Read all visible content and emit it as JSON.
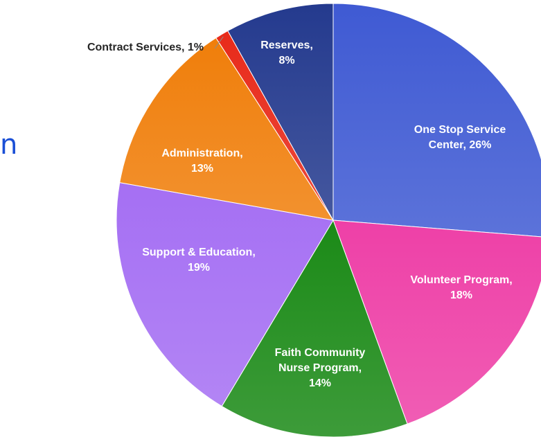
{
  "edge_fragment": "n",
  "chart_data": {
    "type": "pie",
    "title": "",
    "start_angle_deg": 0,
    "direction": "clockwise",
    "slices": [
      {
        "label_lines": [
          "One Stop Service",
          "Center, 26%"
        ],
        "value": 26,
        "color": "#3f5ad3",
        "label_color": "light"
      },
      {
        "label_lines": [
          "Volunteer Program,",
          "18%"
        ],
        "value": 18,
        "color": "#ee40a7",
        "label_color": "light"
      },
      {
        "label_lines": [
          "Faith Community",
          "Nurse Program,",
          "14%"
        ],
        "value": 14,
        "color": "#1b8a17",
        "label_color": "light"
      },
      {
        "label_lines": [
          "Support & Education,",
          "19%"
        ],
        "value": 19,
        "color": "#a56ff3",
        "label_color": "light"
      },
      {
        "label_lines": [
          "Administration,",
          "13%"
        ],
        "value": 13,
        "color": "#f07e0a",
        "label_color": "light"
      },
      {
        "label_lines": [
          "Contract Services, 1%"
        ],
        "value": 1,
        "color": "#e82a1a",
        "label_color": "dark"
      },
      {
        "label_lines": [
          "Reserves,",
          "8%"
        ],
        "value": 8,
        "color": "#243a8e",
        "label_color": "light"
      }
    ]
  }
}
